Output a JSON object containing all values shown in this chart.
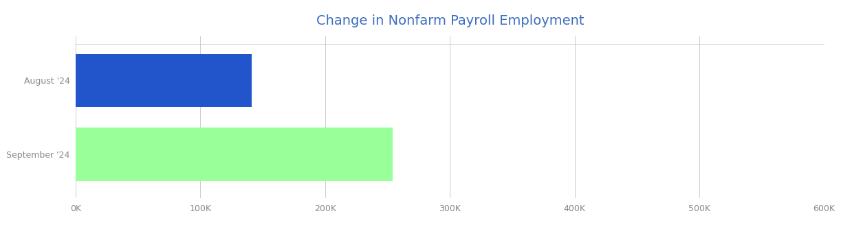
{
  "title": "Change in Nonfarm Payroll Employment",
  "title_color": "#3c6dbf",
  "title_fontsize": 14,
  "categories": [
    "September '24",
    "August '24"
  ],
  "values": [
    254000,
    141000
  ],
  "bar_colors": [
    "#99ff99",
    "#2255cc"
  ],
  "xlim": [
    0,
    600000
  ],
  "xticks": [
    0,
    100000,
    200000,
    300000,
    400000,
    500000,
    600000
  ],
  "xtick_labels": [
    "0K",
    "100K",
    "200K",
    "300K",
    "400K",
    "500K",
    "600K"
  ],
  "background_color": "#ffffff",
  "grid_color": "#cccccc",
  "label_color": "#888888",
  "label_fontsize": 9,
  "bar_height": 0.72
}
